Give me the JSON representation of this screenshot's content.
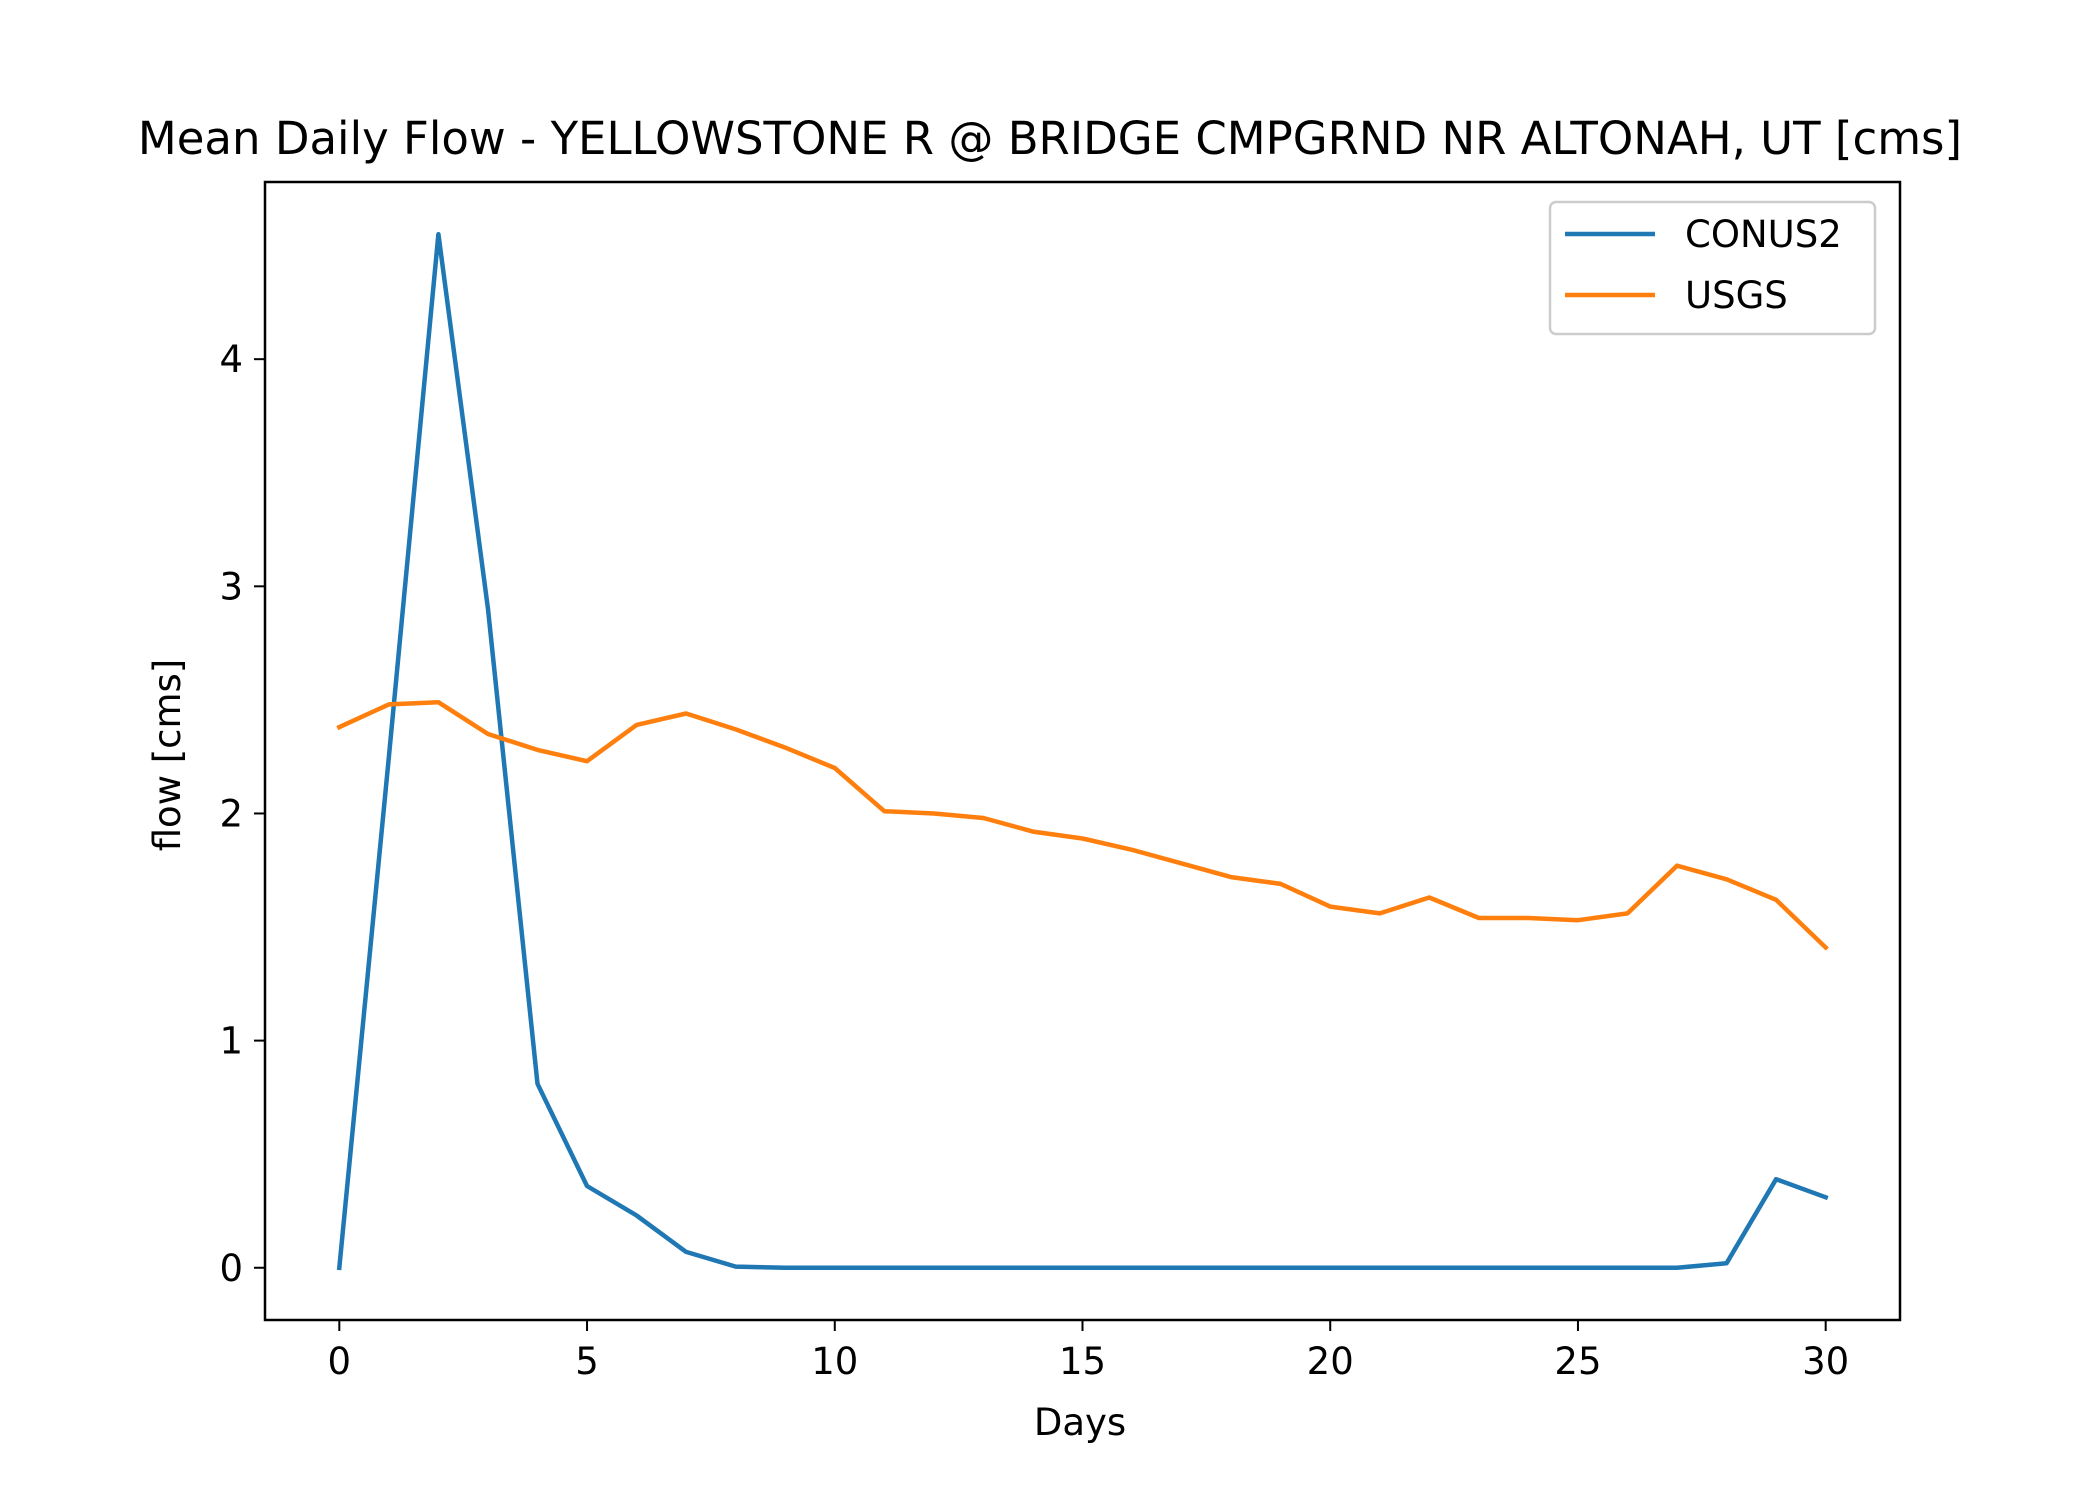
{
  "chart_data": {
    "type": "line",
    "title": "Mean Daily Flow - YELLOWSTONE R @ BRIDGE CMPGRND NR ALTONAH, UT [cms]",
    "xlabel": "Days",
    "ylabel": "flow [cms]",
    "xlim": [
      -1.5,
      31.5
    ],
    "ylim": [
      -0.23,
      4.78
    ],
    "xticks": [
      0,
      5,
      10,
      15,
      20,
      25,
      30
    ],
    "yticks": [
      0,
      1,
      2,
      3,
      4
    ],
    "grid": false,
    "legend_position": "top-right",
    "x": [
      0,
      1,
      2,
      3,
      4,
      5,
      6,
      7,
      8,
      9,
      10,
      11,
      12,
      13,
      14,
      15,
      16,
      17,
      18,
      19,
      20,
      21,
      22,
      23,
      24,
      25,
      26,
      27,
      28,
      29,
      30
    ],
    "series": [
      {
        "name": "CONUS2",
        "color": "#1f77b4",
        "values": [
          0.0,
          2.25,
          4.55,
          2.9,
          0.81,
          0.36,
          0.23,
          0.07,
          0.005,
          0.0,
          0.0,
          0.0,
          0.0,
          0.0,
          0.0,
          0.0,
          0.0,
          0.0,
          0.0,
          0.0,
          0.0,
          0.0,
          0.0,
          0.0,
          0.0,
          0.0,
          0.0,
          0.0,
          0.02,
          0.39,
          0.31
        ]
      },
      {
        "name": "USGS",
        "color": "#ff7f0e",
        "values": [
          2.38,
          2.48,
          2.49,
          2.35,
          2.28,
          2.23,
          2.39,
          2.44,
          2.37,
          2.29,
          2.2,
          2.01,
          2.0,
          1.98,
          1.92,
          1.89,
          1.84,
          1.78,
          1.72,
          1.69,
          1.59,
          1.56,
          1.63,
          1.54,
          1.54,
          1.53,
          1.56,
          1.77,
          1.71,
          1.62,
          1.41
        ]
      }
    ]
  }
}
